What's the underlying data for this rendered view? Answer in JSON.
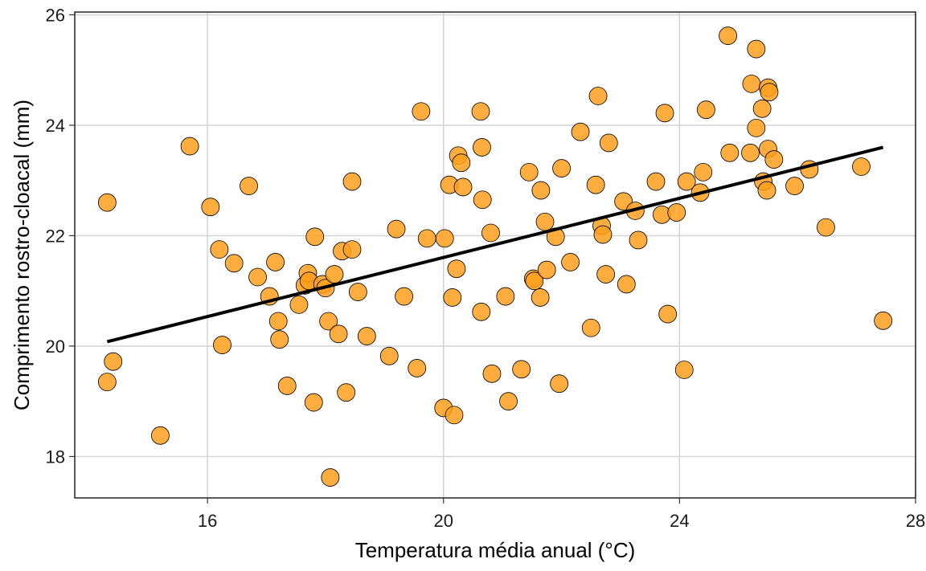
{
  "chart_data": {
    "type": "scatter",
    "title": "",
    "xlabel": "Temperatura média anual (°C)",
    "ylabel": "Comprimento rostro-cloacal (mm)",
    "xlim": [
      13.75,
      28.0
    ],
    "ylim": [
      17.25,
      26.05
    ],
    "x_ticks": [
      16,
      20,
      24,
      28
    ],
    "y_ticks": [
      18,
      20,
      22,
      24,
      26
    ],
    "x_tick_labels": [
      "16",
      "20",
      "24",
      "28"
    ],
    "y_tick_labels": [
      "18",
      "20",
      "22",
      "24",
      "26"
    ],
    "grid": true,
    "legend": "none",
    "point_color": "#ff9f1c",
    "point_stroke": "#000000",
    "line_color": "#000000",
    "trend_line": {
      "x": [
        14.3,
        27.45
      ],
      "y": [
        20.08,
        23.6
      ]
    },
    "points": [
      {
        "x": 14.3,
        "y": 22.6
      },
      {
        "x": 14.3,
        "y": 19.35
      },
      {
        "x": 14.4,
        "y": 19.72
      },
      {
        "x": 15.2,
        "y": 18.38
      },
      {
        "x": 15.7,
        "y": 23.62
      },
      {
        "x": 16.05,
        "y": 22.52
      },
      {
        "x": 16.2,
        "y": 21.75
      },
      {
        "x": 16.25,
        "y": 20.02
      },
      {
        "x": 16.45,
        "y": 21.5
      },
      {
        "x": 16.7,
        "y": 22.9
      },
      {
        "x": 16.85,
        "y": 21.25
      },
      {
        "x": 17.05,
        "y": 20.9
      },
      {
        "x": 17.15,
        "y": 21.52
      },
      {
        "x": 17.2,
        "y": 20.45
      },
      {
        "x": 17.22,
        "y": 20.12
      },
      {
        "x": 17.35,
        "y": 19.28
      },
      {
        "x": 17.55,
        "y": 20.75
      },
      {
        "x": 17.65,
        "y": 21.1
      },
      {
        "x": 17.7,
        "y": 21.32
      },
      {
        "x": 17.72,
        "y": 21.18
      },
      {
        "x": 17.8,
        "y": 18.98
      },
      {
        "x": 17.82,
        "y": 21.98
      },
      {
        "x": 17.95,
        "y": 21.12
      },
      {
        "x": 18.0,
        "y": 21.05
      },
      {
        "x": 18.05,
        "y": 20.45
      },
      {
        "x": 18.08,
        "y": 17.62
      },
      {
        "x": 18.15,
        "y": 21.3
      },
      {
        "x": 18.22,
        "y": 20.22
      },
      {
        "x": 18.28,
        "y": 21.72
      },
      {
        "x": 18.35,
        "y": 19.16
      },
      {
        "x": 18.45,
        "y": 21.75
      },
      {
        "x": 18.45,
        "y": 22.98
      },
      {
        "x": 18.55,
        "y": 20.98
      },
      {
        "x": 18.7,
        "y": 20.18
      },
      {
        "x": 19.08,
        "y": 19.82
      },
      {
        "x": 19.2,
        "y": 22.12
      },
      {
        "x": 19.33,
        "y": 20.9
      },
      {
        "x": 19.55,
        "y": 19.6
      },
      {
        "x": 19.62,
        "y": 24.25
      },
      {
        "x": 19.72,
        "y": 21.95
      },
      {
        "x": 20.02,
        "y": 21.95
      },
      {
        "x": 20.0,
        "y": 18.88
      },
      {
        "x": 20.1,
        "y": 22.92
      },
      {
        "x": 20.15,
        "y": 20.88
      },
      {
        "x": 20.18,
        "y": 18.75
      },
      {
        "x": 20.22,
        "y": 21.4
      },
      {
        "x": 20.25,
        "y": 23.45
      },
      {
        "x": 20.3,
        "y": 23.32
      },
      {
        "x": 20.33,
        "y": 22.88
      },
      {
        "x": 20.63,
        "y": 24.25
      },
      {
        "x": 20.65,
        "y": 23.6
      },
      {
        "x": 20.66,
        "y": 22.65
      },
      {
        "x": 20.64,
        "y": 20.62
      },
      {
        "x": 20.8,
        "y": 22.05
      },
      {
        "x": 20.82,
        "y": 19.5
      },
      {
        "x": 21.05,
        "y": 20.9
      },
      {
        "x": 21.1,
        "y": 19.0
      },
      {
        "x": 21.32,
        "y": 19.58
      },
      {
        "x": 21.45,
        "y": 23.15
      },
      {
        "x": 21.52,
        "y": 21.22
      },
      {
        "x": 21.54,
        "y": 21.18
      },
      {
        "x": 21.65,
        "y": 22.82
      },
      {
        "x": 21.64,
        "y": 20.88
      },
      {
        "x": 21.72,
        "y": 22.25
      },
      {
        "x": 21.75,
        "y": 21.38
      },
      {
        "x": 21.9,
        "y": 21.98
      },
      {
        "x": 21.96,
        "y": 19.32
      },
      {
        "x": 22.0,
        "y": 23.22
      },
      {
        "x": 22.15,
        "y": 21.52
      },
      {
        "x": 22.32,
        "y": 23.88
      },
      {
        "x": 22.5,
        "y": 20.33
      },
      {
        "x": 22.58,
        "y": 22.92
      },
      {
        "x": 22.62,
        "y": 24.53
      },
      {
        "x": 22.68,
        "y": 22.18
      },
      {
        "x": 22.7,
        "y": 22.02
      },
      {
        "x": 22.75,
        "y": 21.3
      },
      {
        "x": 22.8,
        "y": 23.68
      },
      {
        "x": 23.05,
        "y": 22.62
      },
      {
        "x": 23.1,
        "y": 21.12
      },
      {
        "x": 23.25,
        "y": 22.45
      },
      {
        "x": 23.3,
        "y": 21.92
      },
      {
        "x": 23.6,
        "y": 22.98
      },
      {
        "x": 23.7,
        "y": 22.38
      },
      {
        "x": 23.75,
        "y": 24.22
      },
      {
        "x": 23.8,
        "y": 20.58
      },
      {
        "x": 23.95,
        "y": 22.42
      },
      {
        "x": 24.08,
        "y": 19.57
      },
      {
        "x": 24.12,
        "y": 22.98
      },
      {
        "x": 24.35,
        "y": 22.78
      },
      {
        "x": 24.4,
        "y": 23.15
      },
      {
        "x": 24.45,
        "y": 24.28
      },
      {
        "x": 24.82,
        "y": 25.62
      },
      {
        "x": 24.85,
        "y": 23.5
      },
      {
        "x": 25.2,
        "y": 23.5
      },
      {
        "x": 25.22,
        "y": 24.75
      },
      {
        "x": 25.3,
        "y": 25.38
      },
      {
        "x": 25.3,
        "y": 23.95
      },
      {
        "x": 25.4,
        "y": 24.3
      },
      {
        "x": 25.42,
        "y": 22.98
      },
      {
        "x": 25.48,
        "y": 22.82
      },
      {
        "x": 25.5,
        "y": 24.68
      },
      {
        "x": 25.52,
        "y": 24.6
      },
      {
        "x": 25.5,
        "y": 23.57
      },
      {
        "x": 25.6,
        "y": 23.38
      },
      {
        "x": 25.95,
        "y": 22.9
      },
      {
        "x": 26.2,
        "y": 23.2
      },
      {
        "x": 26.48,
        "y": 22.15
      },
      {
        "x": 27.08,
        "y": 23.25
      },
      {
        "x": 27.45,
        "y": 20.46
      }
    ]
  }
}
